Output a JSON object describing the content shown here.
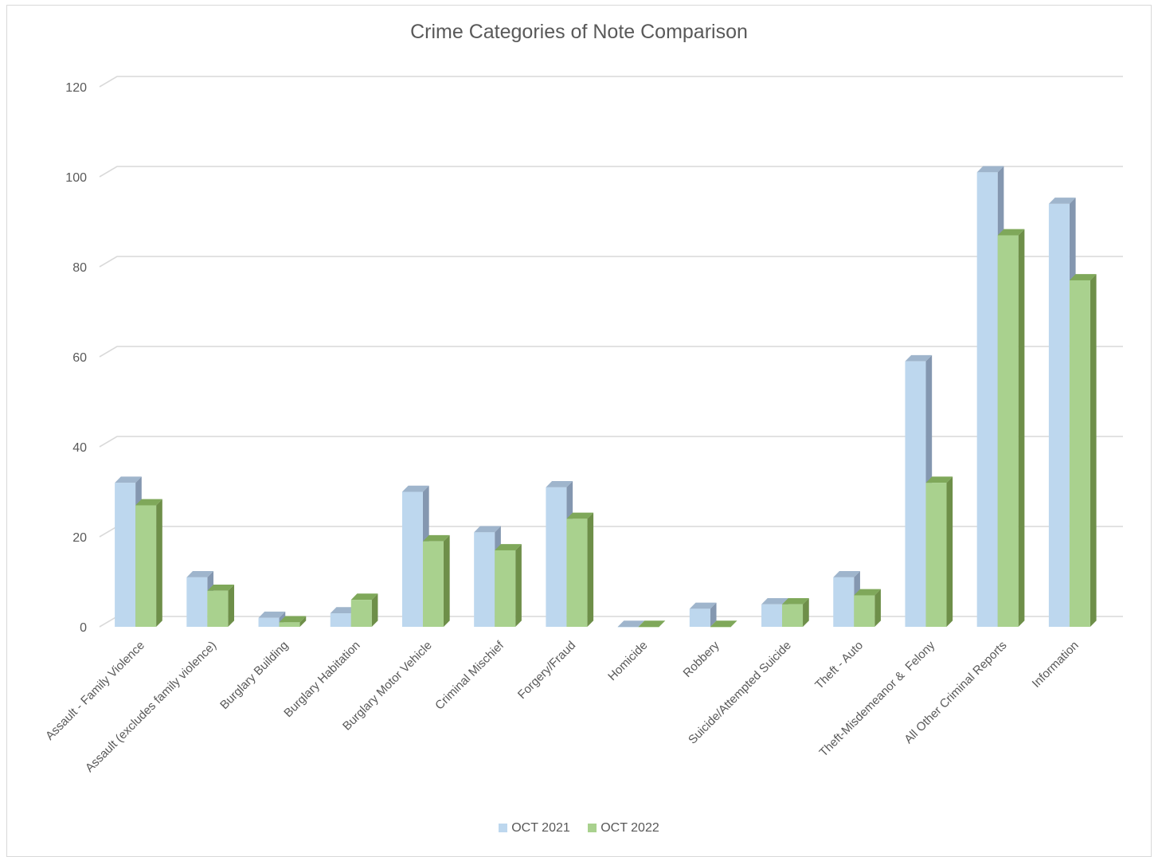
{
  "chart_data": {
    "type": "bar",
    "title": "Crime Categories of Note Comparison",
    "categories": [
      "Assault - Family Violence",
      "Assault (excludes family violence)",
      "Burglary Building",
      "Burglary Habitation",
      "Burglary Motor Vehicle",
      "Criminal Mischief",
      "Forgery/Fraud",
      "Homicide",
      "Robbery",
      "Suicide/Attempted Suicide",
      "Theft - Auto",
      "Theft-Misdemeanor &  Felony",
      "All Other Criminal Reports",
      "Information"
    ],
    "series": [
      {
        "name": "OCT 2021",
        "color": "#bdd7ee",
        "values": [
          32,
          11,
          2,
          3,
          30,
          21,
          31,
          0,
          4,
          5,
          11,
          59,
          101,
          94
        ]
      },
      {
        "name": "OCT 2022",
        "color": "#a9d18e",
        "values": [
          27,
          8,
          1,
          6,
          19,
          17,
          24,
          0,
          0,
          5,
          7,
          32,
          87,
          77
        ]
      }
    ],
    "ylim": [
      0,
      120
    ],
    "yticks": [
      0,
      20,
      40,
      60,
      80,
      100,
      120
    ],
    "grid": true,
    "legend": "bottom",
    "style": "3d-clustered-column"
  }
}
